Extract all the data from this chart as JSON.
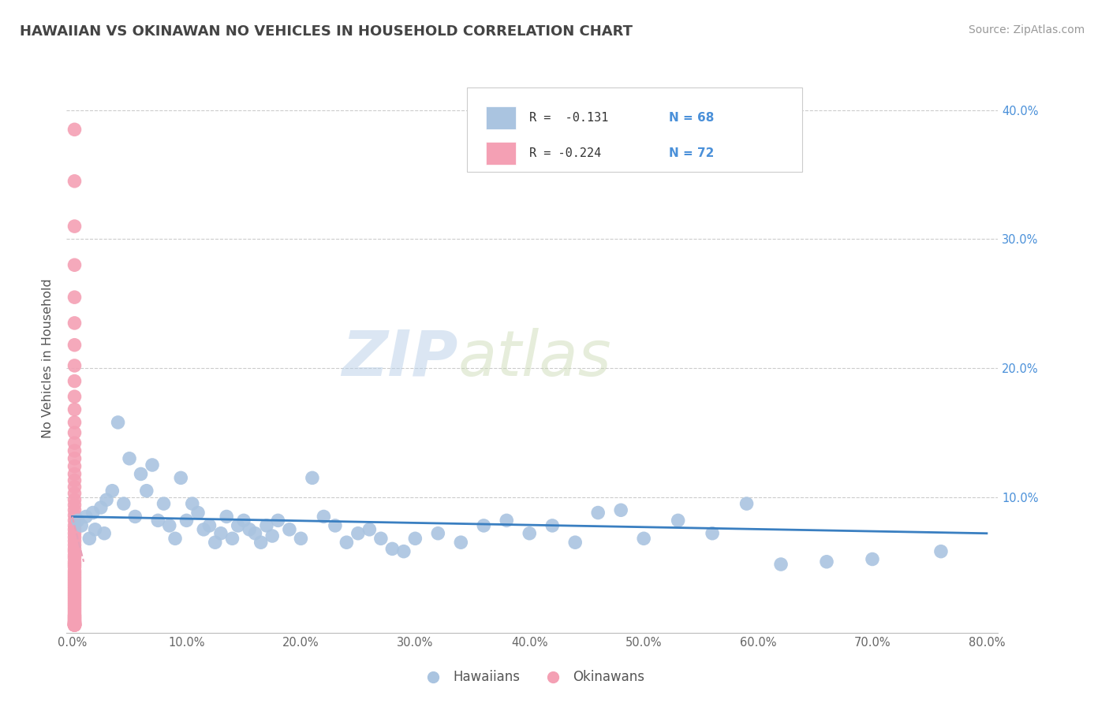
{
  "title": "HAWAIIAN VS OKINAWAN NO VEHICLES IN HOUSEHOLD CORRELATION CHART",
  "source_text": "Source: ZipAtlas.com",
  "ylabel": "No Vehicles in Household",
  "xlim": [
    -0.005,
    0.81
  ],
  "ylim": [
    -0.005,
    0.42
  ],
  "xtick_labels": [
    "0.0%",
    "10.0%",
    "20.0%",
    "30.0%",
    "40.0%",
    "50.0%",
    "60.0%",
    "70.0%",
    "80.0%"
  ],
  "xtick_vals": [
    0.0,
    0.1,
    0.2,
    0.3,
    0.4,
    0.5,
    0.6,
    0.7,
    0.8
  ],
  "ytick_labels": [
    "40.0%",
    "30.0%",
    "20.0%",
    "10.0%"
  ],
  "ytick_vals": [
    0.4,
    0.3,
    0.2,
    0.1
  ],
  "hawaiian_color": "#aac4e0",
  "okinawan_color": "#f4a0b4",
  "trend_color_hawaiian": "#3a7fc1",
  "trend_color_okinawan": "#e8a0b8",
  "legend_R_hawaiian": "R =  -0.131",
  "legend_N_hawaiian": "N = 68",
  "legend_R_okinawan": "R = -0.224",
  "legend_N_okinawan": "N = 72",
  "watermark_zip": "ZIP",
  "watermark_atlas": "atlas",
  "background_color": "#ffffff",
  "grid_color": "#cccccc",
  "hawaiian_x": [
    0.005,
    0.008,
    0.012,
    0.015,
    0.018,
    0.02,
    0.025,
    0.028,
    0.03,
    0.035,
    0.04,
    0.045,
    0.05,
    0.055,
    0.06,
    0.065,
    0.07,
    0.075,
    0.08,
    0.085,
    0.09,
    0.095,
    0.1,
    0.105,
    0.11,
    0.115,
    0.12,
    0.125,
    0.13,
    0.135,
    0.14,
    0.145,
    0.15,
    0.155,
    0.16,
    0.165,
    0.17,
    0.175,
    0.18,
    0.19,
    0.2,
    0.21,
    0.22,
    0.23,
    0.24,
    0.25,
    0.26,
    0.27,
    0.28,
    0.29,
    0.3,
    0.32,
    0.34,
    0.36,
    0.38,
    0.4,
    0.42,
    0.44,
    0.46,
    0.48,
    0.5,
    0.53,
    0.56,
    0.59,
    0.62,
    0.66,
    0.7,
    0.76
  ],
  "hawaiian_y": [
    0.082,
    0.078,
    0.085,
    0.068,
    0.088,
    0.075,
    0.092,
    0.072,
    0.098,
    0.105,
    0.158,
    0.095,
    0.13,
    0.085,
    0.118,
    0.105,
    0.125,
    0.082,
    0.095,
    0.078,
    0.068,
    0.115,
    0.082,
    0.095,
    0.088,
    0.075,
    0.078,
    0.065,
    0.072,
    0.085,
    0.068,
    0.078,
    0.082,
    0.075,
    0.072,
    0.065,
    0.078,
    0.07,
    0.082,
    0.075,
    0.068,
    0.115,
    0.085,
    0.078,
    0.065,
    0.072,
    0.075,
    0.068,
    0.06,
    0.058,
    0.068,
    0.072,
    0.065,
    0.078,
    0.082,
    0.072,
    0.078,
    0.065,
    0.088,
    0.09,
    0.068,
    0.082,
    0.072,
    0.095,
    0.048,
    0.05,
    0.052,
    0.058
  ],
  "okinawan_x": [
    0.002,
    0.002,
    0.002,
    0.002,
    0.002,
    0.002,
    0.002,
    0.002,
    0.002,
    0.002,
    0.002,
    0.002,
    0.002,
    0.002,
    0.002,
    0.002,
    0.002,
    0.002,
    0.002,
    0.002,
    0.002,
    0.002,
    0.002,
    0.002,
    0.002,
    0.002,
    0.002,
    0.002,
    0.002,
    0.002,
    0.002,
    0.002,
    0.002,
    0.002,
    0.002,
    0.002,
    0.002,
    0.002,
    0.002,
    0.002,
    0.002,
    0.002,
    0.002,
    0.002,
    0.002,
    0.002,
    0.002,
    0.002,
    0.002,
    0.002,
    0.002,
    0.002,
    0.002,
    0.002,
    0.002,
    0.002,
    0.002,
    0.002,
    0.002,
    0.002,
    0.002,
    0.002,
    0.002,
    0.002,
    0.002,
    0.002,
    0.002,
    0.002,
    0.002,
    0.002,
    0.002,
    0.002
  ],
  "okinawan_y": [
    0.385,
    0.345,
    0.31,
    0.28,
    0.255,
    0.235,
    0.218,
    0.202,
    0.19,
    0.178,
    0.168,
    0.158,
    0.15,
    0.142,
    0.136,
    0.13,
    0.124,
    0.118,
    0.113,
    0.108,
    0.103,
    0.098,
    0.094,
    0.09,
    0.086,
    0.082,
    0.078,
    0.075,
    0.072,
    0.069,
    0.066,
    0.063,
    0.06,
    0.058,
    0.055,
    0.053,
    0.05,
    0.048,
    0.046,
    0.043,
    0.041,
    0.039,
    0.037,
    0.035,
    0.033,
    0.031,
    0.029,
    0.027,
    0.025,
    0.023,
    0.021,
    0.019,
    0.017,
    0.015,
    0.013,
    0.011,
    0.009,
    0.008,
    0.007,
    0.006,
    0.005,
    0.004,
    0.003,
    0.003,
    0.002,
    0.002,
    0.001,
    0.001,
    0.001,
    0.001,
    0.001,
    0.001
  ]
}
